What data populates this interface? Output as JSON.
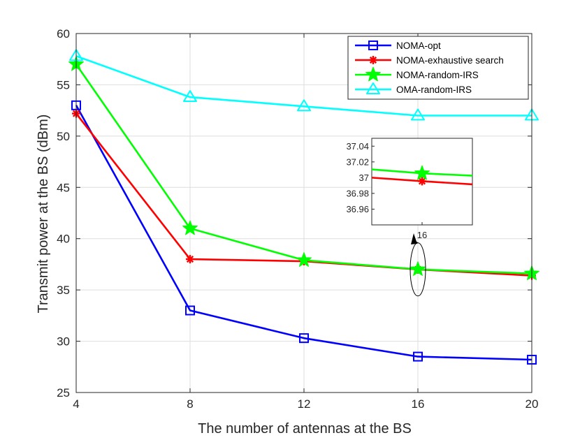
{
  "chart_data": {
    "type": "line",
    "title": "",
    "xlabel": "The number of antennas at the BS",
    "ylabel": "Transmit power at the BS (dBm)",
    "x": [
      4,
      8,
      12,
      16,
      20
    ],
    "xlim": [
      4,
      20
    ],
    "ylim": [
      25,
      60
    ],
    "xticks": [
      "4",
      "8",
      "12",
      "16",
      "20"
    ],
    "yticks": [
      "25",
      "30",
      "35",
      "40",
      "45",
      "50",
      "55",
      "60"
    ],
    "grid": true,
    "legend_position": "top-right",
    "series": [
      {
        "name": "NOMA-opt",
        "color": "#0000FF",
        "marker": "square",
        "values": [
          53.0,
          33.0,
          30.3,
          28.5,
          28.2
        ]
      },
      {
        "name": "NOMA-exhaustive search",
        "color": "#FF0000",
        "marker": "asterisk",
        "values": [
          52.2,
          38.0,
          37.8,
          37.0,
          36.4
        ]
      },
      {
        "name": "NOMA-random-IRS",
        "color": "#00FF00",
        "marker": "star",
        "values": [
          57.0,
          41.0,
          37.9,
          37.01,
          36.6
        ]
      },
      {
        "name": "OMA-random-IRS",
        "color": "#00FFFF",
        "marker": "triangle",
        "values": [
          57.8,
          53.8,
          52.9,
          52.0,
          52.0
        ]
      }
    ],
    "inset": {
      "xlim": [
        15.6,
        16.4
      ],
      "ylim": [
        36.94,
        37.05
      ],
      "xticks": [
        "16"
      ],
      "yticks": [
        "36.96",
        "36.98",
        "37",
        "37.02",
        "37.04"
      ],
      "series": [
        {
          "name": "NOMA-exhaustive search",
          "points": [
            [
              15.6,
              37.0
            ],
            [
              16.0,
              36.9955
            ],
            [
              16.4,
              36.9915
            ]
          ]
        },
        {
          "name": "NOMA-random-IRS",
          "points": [
            [
              15.6,
              37.0105
            ],
            [
              16.0,
              37.0055
            ],
            [
              16.4,
              37.0025
            ]
          ]
        }
      ],
      "highlight_x": 16
    }
  }
}
